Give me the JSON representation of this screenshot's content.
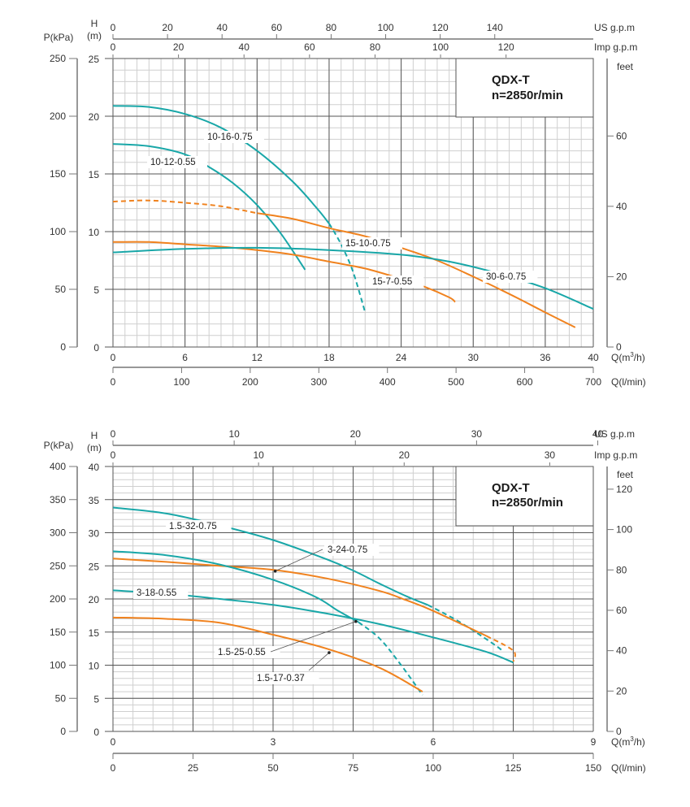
{
  "colors": {
    "teal": "#19a7a8",
    "orange": "#f0821e",
    "grid_major": "#555555",
    "grid_minor": "#cfcfcf",
    "axis": "#777777"
  },
  "chart_data": [
    {
      "type": "line",
      "title": "QDX-T",
      "subtitle": "n=2850r/min",
      "xlabel": "Q(m³/h)",
      "ylabel": "H\n(m)",
      "xlabel_lmin": "Q(l/min)",
      "ylabel_kpa": "P(kPa)",
      "ylabel_feet": "feet",
      "top_axis_us_label": "US g.p.m",
      "top_axis_imp_label": "Imp g.p.m",
      "xlim": [
        0,
        40
      ],
      "ylim": [
        0,
        25
      ],
      "x_ticks": [
        0,
        6,
        12,
        18,
        24,
        30,
        36,
        40
      ],
      "y_ticks": [
        0,
        5,
        10,
        15,
        20,
        25
      ],
      "kpa_ticks": [
        0,
        50,
        100,
        150,
        200,
        250
      ],
      "feet_ticks": [
        0,
        20,
        40,
        60
      ],
      "lmin_ticks": [
        0,
        100,
        200,
        300,
        400,
        500,
        600,
        700
      ],
      "us_gpm_ticks": [
        0,
        20,
        40,
        60,
        80,
        100,
        120,
        140
      ],
      "imp_gpm_ticks": [
        0,
        20,
        40,
        60,
        80,
        100,
        120
      ],
      "grid": true,
      "series": [
        {
          "name": "10-16-0.75",
          "color": "teal",
          "points": [
            [
              0,
              20.9
            ],
            [
              3,
              20.8
            ],
            [
              6,
              20.2
            ],
            [
              9,
              19.0
            ],
            [
              12,
              17.0
            ],
            [
              15,
              14.3
            ],
            [
              17,
              12.0
            ],
            [
              18,
              10.7
            ]
          ],
          "dashed_points": [
            [
              18,
              10.7
            ],
            [
              19,
              8.9
            ],
            [
              20,
              6.5
            ],
            [
              21,
              3.0
            ]
          ]
        },
        {
          "name": "10-12-0.55",
          "color": "teal",
          "points": [
            [
              0,
              17.6
            ],
            [
              3,
              17.4
            ],
            [
              6,
              16.7
            ],
            [
              8,
              15.6
            ],
            [
              10,
              14.2
            ],
            [
              12,
              12.3
            ],
            [
              14,
              9.8
            ],
            [
              16,
              6.7
            ]
          ]
        },
        {
          "name": "15-10-0.75",
          "color": "orange",
          "dashed_points": [
            [
              0,
              12.6
            ],
            [
              3,
              12.7
            ],
            [
              6,
              12.5
            ],
            [
              9,
              12.2
            ],
            [
              12,
              11.6
            ]
          ],
          "points": [
            [
              12,
              11.6
            ],
            [
              15,
              11.1
            ],
            [
              18,
              10.3
            ],
            [
              21,
              9.6
            ],
            [
              24,
              8.6
            ],
            [
              27,
              7.5
            ],
            [
              30,
              6.1
            ],
            [
              33,
              4.6
            ],
            [
              36,
              3.0
            ],
            [
              38.5,
              1.7
            ]
          ]
        },
        {
          "name": "15-7-0.55",
          "color": "orange",
          "points": [
            [
              0,
              9.1
            ],
            [
              3,
              9.1
            ],
            [
              6,
              8.9
            ],
            [
              9,
              8.7
            ],
            [
              12,
              8.4
            ],
            [
              15,
              8.0
            ],
            [
              18,
              7.4
            ],
            [
              21,
              6.8
            ],
            [
              24,
              5.9
            ],
            [
              26,
              5.2
            ],
            [
              28,
              4.3
            ],
            [
              28.5,
              3.9
            ]
          ]
        },
        {
          "name": "30-6-0.75",
          "color": "teal",
          "points": [
            [
              0,
              8.2
            ],
            [
              6,
              8.5
            ],
            [
              12,
              8.6
            ],
            [
              18,
              8.4
            ],
            [
              24,
              8.0
            ],
            [
              28,
              7.4
            ],
            [
              32,
              6.4
            ],
            [
              36,
              5.1
            ],
            [
              40,
              3.3
            ]
          ]
        }
      ],
      "labels": [
        "10-16-0.75",
        "10-12-0.55",
        "15-10-0.75",
        "15-7-0.55",
        "30-6-0.75"
      ]
    },
    {
      "type": "line",
      "title": "QDX-T",
      "subtitle": "n=2850r/min",
      "xlabel": "Q(m³/h)",
      "ylabel": "H\n(m)",
      "xlabel_lmin": "Q(l/min)",
      "ylabel_kpa": "P(kPa)",
      "ylabel_feet": "feet",
      "top_axis_us_label": "US g.p.m",
      "top_axis_imp_label": "Imp g.p.m",
      "xlim": [
        0,
        9
      ],
      "ylim": [
        0,
        40
      ],
      "x_ticks": [
        0,
        3,
        6,
        9
      ],
      "y_ticks": [
        0,
        5,
        10,
        15,
        20,
        25,
        30,
        35,
        40
      ],
      "kpa_ticks": [
        0,
        50,
        100,
        150,
        200,
        250,
        300,
        350,
        400
      ],
      "feet_ticks": [
        0,
        20,
        40,
        60,
        80,
        100,
        120
      ],
      "lmin_ticks": [
        0,
        25,
        50,
        75,
        100,
        125,
        150
      ],
      "us_gpm_ticks": [
        0,
        10,
        20,
        30,
        40
      ],
      "imp_gpm_ticks": [
        0,
        10,
        20,
        30
      ],
      "grid": true,
      "series": [
        {
          "name": "1.5-32-0.75",
          "color": "teal",
          "points": [
            [
              0,
              33.8
            ],
            [
              1,
              32.9
            ],
            [
              2,
              31.1
            ],
            [
              3,
              28.9
            ],
            [
              4,
              26.0
            ],
            [
              4.5,
              24.3
            ],
            [
              5,
              22.3
            ],
            [
              5.5,
              20.4
            ],
            [
              5.9,
              19.1
            ]
          ],
          "dashed_points": [
            [
              5.9,
              19.1
            ],
            [
              6.5,
              16.5
            ],
            [
              7.2,
              12.8
            ],
            [
              7.3,
              11.9
            ]
          ]
        },
        {
          "name": "3-24-0.75",
          "color": "orange",
          "points": [
            [
              0,
              26.1
            ],
            [
              1,
              25.6
            ],
            [
              2,
              25.0
            ],
            [
              3,
              24.4
            ],
            [
              4,
              23.1
            ],
            [
              5,
              21.2
            ],
            [
              5.5,
              19.8
            ],
            [
              6,
              18.2
            ],
            [
              7,
              14.4
            ]
          ],
          "dashed_points": [
            [
              7,
              14.4
            ],
            [
              7.5,
              12.2
            ],
            [
              7.5,
              10.5
            ]
          ],
          "marker": [
            3.04,
            24.2
          ]
        },
        {
          "name": "1.5-25-0.55",
          "color": "teal",
          "points": [
            [
              0,
              27.2
            ],
            [
              1,
              26.6
            ],
            [
              2,
              25.2
            ],
            [
              3,
              22.9
            ],
            [
              3.8,
              20.3
            ],
            [
              4.2,
              18.3
            ],
            [
              4.6,
              16.5
            ]
          ],
          "dashed_points": [
            [
              4.6,
              16.5
            ],
            [
              5,
              14.0
            ],
            [
              5.4,
              10.0
            ],
            [
              5.8,
              5.5
            ]
          ],
          "marker": [
            4.55,
            16.6
          ]
        },
        {
          "name": "3-18-0.55",
          "color": "teal",
          "points": [
            [
              0,
              21.3
            ],
            [
              1,
              20.8
            ],
            [
              2,
              20.0
            ],
            [
              3,
              19.1
            ],
            [
              4,
              17.8
            ],
            [
              5,
              16.2
            ],
            [
              6,
              14.2
            ],
            [
              7,
              12.0
            ],
            [
              7.5,
              10.4
            ]
          ]
        },
        {
          "name": "1.5-17-0.37",
          "color": "orange",
          "points": [
            [
              0,
              17.2
            ],
            [
              1,
              17.0
            ],
            [
              2,
              16.4
            ],
            [
              3,
              14.6
            ],
            [
              4,
              12.5
            ],
            [
              5,
              9.6
            ],
            [
              5.8,
              6.0
            ]
          ],
          "marker": [
            4.05,
            11.9
          ]
        }
      ],
      "labels": [
        "1.5-32-0.75",
        "3-24-0.75",
        "3-18-0.55",
        "1.5-25-0.55",
        "1.5-17-0.37"
      ]
    }
  ]
}
